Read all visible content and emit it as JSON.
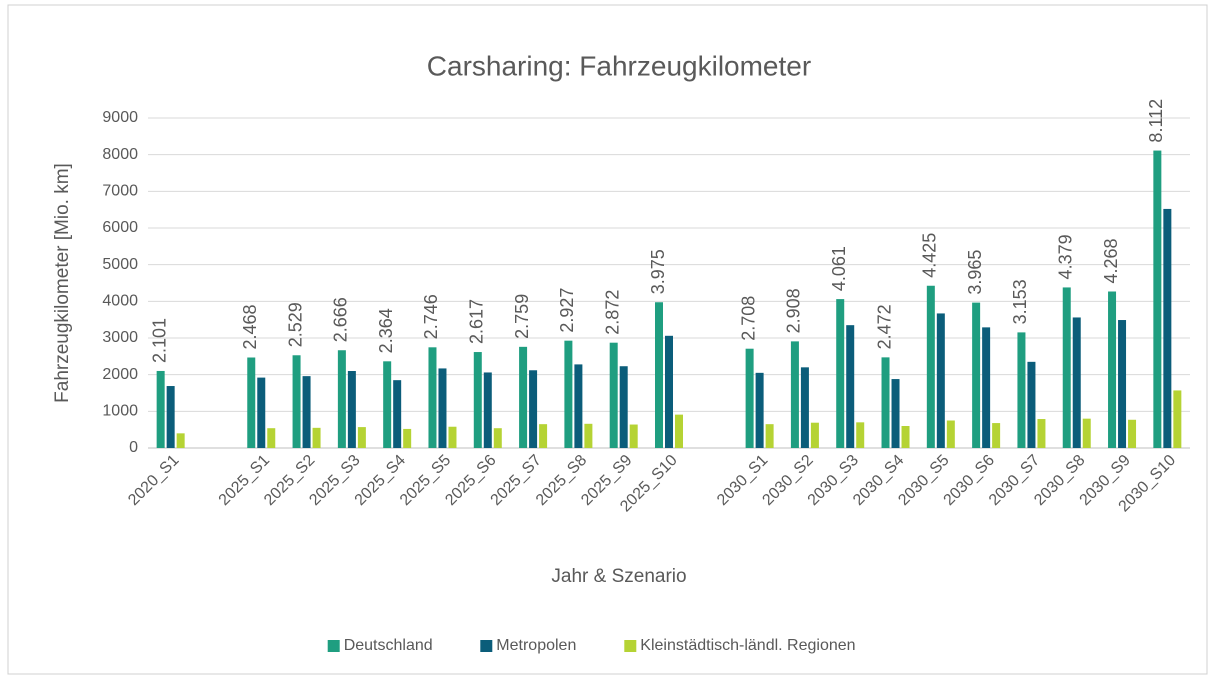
{
  "chart_data": {
    "type": "bar",
    "title": "Carsharing: Fahrzeugkilometer",
    "x_label": "Jahr & Szenario",
    "y_label": "Fahrzeugkilometer [Mio. km]",
    "categories": [
      "2020_S1",
      null,
      "2025_S1",
      "2025_S2",
      "2025_S3",
      "2025_S4",
      "2025_S5",
      "2025_S6",
      "2025_S7",
      "2025_S8",
      "2025_S9",
      "2025_S10",
      null,
      "2030_S1",
      "2030_S2",
      "2030_S3",
      "2030_S4",
      "2030_S5",
      "2030_S6",
      "2030_S7",
      "2030_S8",
      "2030_S9",
      "2030_S10"
    ],
    "series": [
      {
        "name": "Deutschland",
        "color": "#1f9e80",
        "values": [
          2101,
          null,
          2468,
          2529,
          2666,
          2364,
          2746,
          2617,
          2759,
          2927,
          2872,
          3975,
          null,
          2708,
          2908,
          4061,
          2472,
          4425,
          3965,
          3153,
          4379,
          4268,
          8112
        ],
        "value_labels": [
          "2.101",
          null,
          "2.468",
          "2.529",
          "2.666",
          "2.364",
          "2.746",
          "2.617",
          "2.759",
          "2.927",
          "2.872",
          "3.975",
          null,
          "2.708",
          "2.908",
          "4.061",
          "2.472",
          "4.425",
          "3.965",
          "3.153",
          "4.379",
          "4.268",
          "8.112"
        ]
      },
      {
        "name": "Metropolen",
        "color": "#0b5d7a",
        "values": [
          1690,
          null,
          1920,
          1960,
          2100,
          1850,
          2170,
          2060,
          2120,
          2280,
          2230,
          3060,
          null,
          2050,
          2200,
          3350,
          1880,
          3670,
          3290,
          2350,
          3560,
          3490,
          6520
        ]
      },
      {
        "name": "Kleinstädtisch-ländl. Regionen",
        "color": "#b5d334",
        "values": [
          400,
          null,
          540,
          550,
          570,
          520,
          580,
          540,
          650,
          660,
          640,
          910,
          null,
          650,
          690,
          700,
          600,
          750,
          680,
          790,
          800,
          770,
          1570
        ]
      }
    ],
    "ylim": [
      0,
      9000
    ],
    "yticks": [
      0,
      1000,
      2000,
      3000,
      4000,
      5000,
      6000,
      7000,
      8000,
      9000
    ],
    "grid": true,
    "legend": "bottom"
  }
}
